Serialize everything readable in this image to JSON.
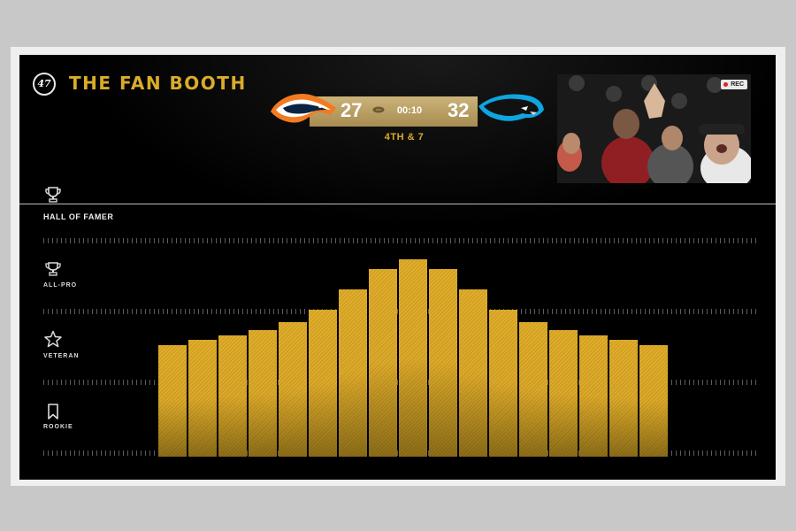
{
  "header": {
    "brand_logo_text": "47",
    "title": "THE FAN BOOTH"
  },
  "scoreboard": {
    "home_team_icon": "broncos-logo-icon",
    "home_score": "27",
    "clock": "00:10",
    "away_score": "32",
    "away_team_icon": "panthers-logo-icon",
    "down_and_distance": "4TH & 7",
    "bar_color": "#b89c60"
  },
  "video": {
    "rec_label": "REC"
  },
  "tiers": [
    {
      "label": "HALL OF FAMER",
      "icon": "trophy-icon"
    },
    {
      "label": "ALL-PRO",
      "icon": "trophy-small-icon"
    },
    {
      "label": "VETERAN",
      "icon": "star-icon"
    },
    {
      "label": "ROOKIE",
      "icon": "bookmark-icon"
    }
  ],
  "meter": {
    "scale_max": 100,
    "values": [
      44,
      46,
      48,
      50,
      53,
      58,
      66,
      74,
      78,
      74,
      66,
      58,
      53,
      50,
      48,
      46,
      44
    ],
    "accent_color": "#dcab2a"
  }
}
